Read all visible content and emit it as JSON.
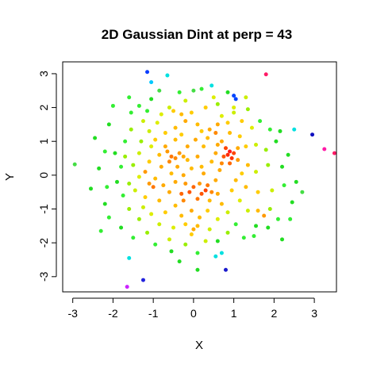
{
  "chart_data": {
    "type": "scatter",
    "title": "2D Gaussian Dint at perp = 43",
    "xlabel": "X",
    "ylabel": "Y",
    "xlim": [
      -3.25,
      3.55
    ],
    "ylim": [
      -3.45,
      3.35
    ],
    "x_ticks": [
      -3,
      -2,
      -1,
      0,
      1,
      2,
      3
    ],
    "y_ticks": [
      -3,
      -2,
      -1,
      0,
      1,
      2,
      3
    ],
    "grid": false,
    "legend": "none",
    "color_scale": "rainbow: red = high local density, through orange, yellow, green, cyan, to blue/magenta = low density",
    "points": [
      {
        "x": -1.15,
        "y": 3.05,
        "color": "#0a3dff"
      },
      {
        "x": -1.05,
        "y": 2.75,
        "color": "#00c8ff"
      },
      {
        "x": -0.65,
        "y": 2.95,
        "color": "#00e0e0"
      },
      {
        "x": 1.8,
        "y": 2.98,
        "color": "#ff1a66"
      },
      {
        "x": 0.85,
        "y": 2.45,
        "color": "#22dd22"
      },
      {
        "x": 1.0,
        "y": 2.35,
        "color": "#0044ff"
      },
      {
        "x": 1.05,
        "y": 2.25,
        "color": "#0044ff"
      },
      {
        "x": 0.45,
        "y": 2.65,
        "color": "#00e0e0"
      },
      {
        "x": -1.6,
        "y": 2.3,
        "color": "#33ee33"
      },
      {
        "x": -2.0,
        "y": 2.05,
        "color": "#33ee33"
      },
      {
        "x": 2.5,
        "y": 1.35,
        "color": "#00e0e0"
      },
      {
        "x": 2.95,
        "y": 1.2,
        "color": "#1010c0"
      },
      {
        "x": 3.25,
        "y": 0.77,
        "color": "#ff1aa6"
      },
      {
        "x": 3.5,
        "y": 0.65,
        "color": "#ff1a66"
      },
      {
        "x": -2.95,
        "y": 0.32,
        "color": "#44dd44"
      },
      {
        "x": -2.55,
        "y": -0.4,
        "color": "#22dd22"
      },
      {
        "x": -2.3,
        "y": -1.65,
        "color": "#33ee33"
      },
      {
        "x": -1.6,
        "y": -2.45,
        "color": "#00e0e0"
      },
      {
        "x": -1.65,
        "y": -3.3,
        "color": "#cc22ff"
      },
      {
        "x": -1.25,
        "y": -3.1,
        "color": "#2222dd"
      },
      {
        "x": 0.8,
        "y": -2.8,
        "color": "#1a1acc"
      },
      {
        "x": 0.7,
        "y": -2.3,
        "color": "#00e0e0"
      },
      {
        "x": 0.55,
        "y": -2.4,
        "color": "#00e0e0"
      },
      {
        "x": 0.1,
        "y": -2.8,
        "color": "#22dd22"
      },
      {
        "x": -0.35,
        "y": -2.55,
        "color": "#22dd22"
      },
      {
        "x": 2.45,
        "y": -0.8,
        "color": "#22dd22"
      },
      {
        "x": 2.2,
        "y": -1.9,
        "color": "#22dd22"
      },
      {
        "x": 2.7,
        "y": -0.5,
        "color": "#44dd44"
      },
      {
        "x": 0.9,
        "y": 0.7,
        "color": "#ff1a1a"
      },
      {
        "x": 0.85,
        "y": 0.6,
        "color": "#ff2a00"
      },
      {
        "x": 0.95,
        "y": 0.5,
        "color": "#ff3300"
      },
      {
        "x": 0.8,
        "y": 0.8,
        "color": "#ff4400"
      },
      {
        "x": 1.0,
        "y": 0.65,
        "color": "#ff4400"
      },
      {
        "x": 0.75,
        "y": 0.55,
        "color": "#ff5500"
      },
      {
        "x": 0.9,
        "y": 0.35,
        "color": "#ff6600"
      },
      {
        "x": 0.3,
        "y": -0.45,
        "color": "#ff4400"
      },
      {
        "x": 0.2,
        "y": -0.55,
        "color": "#ff5500"
      },
      {
        "x": -0.1,
        "y": -0.5,
        "color": "#ff5500"
      },
      {
        "x": 0.0,
        "y": -0.35,
        "color": "#ff6600"
      },
      {
        "x": 0.35,
        "y": -0.3,
        "color": "#ff7700"
      },
      {
        "x": -0.3,
        "y": -0.55,
        "color": "#ff6600"
      },
      {
        "x": 0.1,
        "y": -0.7,
        "color": "#ff7700"
      },
      {
        "x": -0.55,
        "y": 0.55,
        "color": "#ff7700"
      },
      {
        "x": -0.45,
        "y": 0.5,
        "color": "#ff8800"
      },
      {
        "x": -0.6,
        "y": 0.4,
        "color": "#ff8800"
      },
      {
        "x": -0.35,
        "y": 0.65,
        "color": "#ff9900"
      },
      {
        "x": 0.55,
        "y": 1.25,
        "color": "#ff8800"
      },
      {
        "x": 0.4,
        "y": 1.35,
        "color": "#ffaa00"
      },
      {
        "x": 0.6,
        "y": 1.5,
        "color": "#ffaa00"
      },
      {
        "x": -1.0,
        "y": -0.35,
        "color": "#ff7700"
      },
      {
        "x": -1.1,
        "y": -0.25,
        "color": "#ff9900"
      },
      {
        "x": -1.2,
        "y": 0.1,
        "color": "#ff9900"
      },
      {
        "x": 0.0,
        "y": -1.6,
        "color": "#ffaa00"
      },
      {
        "x": 0.1,
        "y": -1.5,
        "color": "#ffbb00"
      },
      {
        "x": -0.05,
        "y": -1.75,
        "color": "#ffcc00"
      },
      {
        "x": 1.75,
        "y": -1.2,
        "color": "#ff9900"
      },
      {
        "x": 1.6,
        "y": -1.05,
        "color": "#ffbb00"
      },
      {
        "x": -0.2,
        "y": 1.6,
        "color": "#ffaa00"
      },
      {
        "x": -0.3,
        "y": 1.8,
        "color": "#ffbb00"
      },
      {
        "x": 0.3,
        "y": 2.0,
        "color": "#ffcc00"
      },
      {
        "x": 0.5,
        "y": 2.3,
        "color": "#ddee00"
      },
      {
        "x": -0.2,
        "y": 2.2,
        "color": "#ccee00"
      },
      {
        "x": -0.6,
        "y": 2.0,
        "color": "#ccee00"
      },
      {
        "x": 0.0,
        "y": 2.5,
        "color": "#44dd44"
      },
      {
        "x": 0.2,
        "y": 2.55,
        "color": "#33ee33"
      },
      {
        "x": -0.85,
        "y": 2.5,
        "color": "#44dd44"
      },
      {
        "x": -1.35,
        "y": 2.05,
        "color": "#33ee33"
      },
      {
        "x": 1.3,
        "y": 2.3,
        "color": "#ccee00"
      },
      {
        "x": 1.0,
        "y": 2.0,
        "color": "#ddee00"
      },
      {
        "x": 1.2,
        "y": 1.6,
        "color": "#ffcc00"
      },
      {
        "x": 1.45,
        "y": 1.4,
        "color": "#ddee00"
      },
      {
        "x": 1.65,
        "y": 1.6,
        "color": "#33ee33"
      },
      {
        "x": 1.9,
        "y": 1.35,
        "color": "#33ee33"
      },
      {
        "x": 2.05,
        "y": 1.0,
        "color": "#22dd22"
      },
      {
        "x": 1.8,
        "y": 0.75,
        "color": "#99ee00"
      },
      {
        "x": 1.55,
        "y": 0.9,
        "color": "#ccee00"
      },
      {
        "x": 1.3,
        "y": 0.85,
        "color": "#ffcc00"
      },
      {
        "x": 1.35,
        "y": 0.3,
        "color": "#ffbb00"
      },
      {
        "x": 1.55,
        "y": 0.1,
        "color": "#ccee00"
      },
      {
        "x": 1.85,
        "y": 0.3,
        "color": "#99ee00"
      },
      {
        "x": 2.2,
        "y": 0.25,
        "color": "#22dd22"
      },
      {
        "x": 2.25,
        "y": -0.3,
        "color": "#33ee33"
      },
      {
        "x": 1.95,
        "y": -0.45,
        "color": "#ccee00"
      },
      {
        "x": 1.6,
        "y": -0.5,
        "color": "#ffcc00"
      },
      {
        "x": 1.3,
        "y": -0.35,
        "color": "#ffbb00"
      },
      {
        "x": 1.05,
        "y": -0.15,
        "color": "#ffbb00"
      },
      {
        "x": 1.15,
        "y": -0.75,
        "color": "#ddee00"
      },
      {
        "x": 1.35,
        "y": -1.05,
        "color": "#ccee00"
      },
      {
        "x": 1.9,
        "y": -1.0,
        "color": "#99ee00"
      },
      {
        "x": 2.1,
        "y": -1.3,
        "color": "#33ee33"
      },
      {
        "x": 1.55,
        "y": -1.5,
        "color": "#22dd22"
      },
      {
        "x": 1.05,
        "y": -1.45,
        "color": "#33ee33"
      },
      {
        "x": 1.25,
        "y": -1.85,
        "color": "#33ee33"
      },
      {
        "x": 0.6,
        "y": -1.95,
        "color": "#22dd22"
      },
      {
        "x": 0.4,
        "y": -1.6,
        "color": "#ccee00"
      },
      {
        "x": 0.6,
        "y": -1.3,
        "color": "#ddee00"
      },
      {
        "x": 0.35,
        "y": -1.05,
        "color": "#ffcc00"
      },
      {
        "x": 0.7,
        "y": -0.85,
        "color": "#ffbb00"
      },
      {
        "x": 0.6,
        "y": -0.55,
        "color": "#ffaa00"
      },
      {
        "x": 0.55,
        "y": -0.15,
        "color": "#ffaa00"
      },
      {
        "x": 0.65,
        "y": 0.15,
        "color": "#ffaa00"
      },
      {
        "x": 0.45,
        "y": 0.4,
        "color": "#ffbb00"
      },
      {
        "x": 0.2,
        "y": 0.25,
        "color": "#ffbb00"
      },
      {
        "x": 0.1,
        "y": 0.55,
        "color": "#ffaa00"
      },
      {
        "x": 0.25,
        "y": 0.85,
        "color": "#ffbb00"
      },
      {
        "x": 0.05,
        "y": 1.05,
        "color": "#ffaa00"
      },
      {
        "x": 0.35,
        "y": 1.1,
        "color": "#ffbb00"
      },
      {
        "x": 0.7,
        "y": 1.0,
        "color": "#ffaa00"
      },
      {
        "x": 0.9,
        "y": 1.25,
        "color": "#ffbb00"
      },
      {
        "x": -0.15,
        "y": 0.85,
        "color": "#ffaa00"
      },
      {
        "x": -0.05,
        "y": 0.2,
        "color": "#ffbb00"
      },
      {
        "x": -0.25,
        "y": 0.0,
        "color": "#ffaa00"
      },
      {
        "x": -0.2,
        "y": -0.25,
        "color": "#ff9900"
      },
      {
        "x": -0.45,
        "y": -0.2,
        "color": "#ffaa00"
      },
      {
        "x": -0.55,
        "y": 0.05,
        "color": "#ffbb00"
      },
      {
        "x": -0.8,
        "y": 0.25,
        "color": "#ffaa00"
      },
      {
        "x": -0.85,
        "y": 0.6,
        "color": "#ffbb00"
      },
      {
        "x": -0.7,
        "y": 0.85,
        "color": "#ffaa00"
      },
      {
        "x": -0.45,
        "y": 1.05,
        "color": "#ffbb00"
      },
      {
        "x": -0.7,
        "y": 1.25,
        "color": "#ffcc00"
      },
      {
        "x": -0.45,
        "y": 1.4,
        "color": "#ffbb00"
      },
      {
        "x": -0.9,
        "y": 1.55,
        "color": "#ddee00"
      },
      {
        "x": -1.1,
        "y": 1.3,
        "color": "#ccee00"
      },
      {
        "x": -1.3,
        "y": 1.0,
        "color": "#99ee00"
      },
      {
        "x": -1.05,
        "y": 0.85,
        "color": "#ddee00"
      },
      {
        "x": -1.35,
        "y": 0.65,
        "color": "#ccee00"
      },
      {
        "x": -1.5,
        "y": 0.3,
        "color": "#99ee00"
      },
      {
        "x": -1.35,
        "y": -0.05,
        "color": "#ddee00"
      },
      {
        "x": -1.45,
        "y": -0.45,
        "color": "#ccee00"
      },
      {
        "x": -1.2,
        "y": -0.65,
        "color": "#ffcc00"
      },
      {
        "x": -0.85,
        "y": -0.75,
        "color": "#ffbb00"
      },
      {
        "x": -0.6,
        "y": -0.5,
        "color": "#ffaa00"
      },
      {
        "x": -0.45,
        "y": -0.9,
        "color": "#ffbb00"
      },
      {
        "x": -0.7,
        "y": -1.1,
        "color": "#ffcc00"
      },
      {
        "x": -0.3,
        "y": -1.2,
        "color": "#ffbb00"
      },
      {
        "x": -0.05,
        "y": -1.05,
        "color": "#ffaa00"
      },
      {
        "x": 0.15,
        "y": -1.25,
        "color": "#ffbb00"
      },
      {
        "x": -0.2,
        "y": -1.45,
        "color": "#ffcc00"
      },
      {
        "x": -0.5,
        "y": -1.55,
        "color": "#ddee00"
      },
      {
        "x": -0.85,
        "y": -1.45,
        "color": "#ccee00"
      },
      {
        "x": -1.05,
        "y": -1.15,
        "color": "#ddee00"
      },
      {
        "x": -1.35,
        "y": -1.3,
        "color": "#99ee00"
      },
      {
        "x": -1.6,
        "y": -1.0,
        "color": "#99ee00"
      },
      {
        "x": -1.75,
        "y": -0.6,
        "color": "#33ee33"
      },
      {
        "x": -1.9,
        "y": -0.2,
        "color": "#22dd22"
      },
      {
        "x": -1.8,
        "y": 0.25,
        "color": "#33ee33"
      },
      {
        "x": -1.95,
        "y": 0.65,
        "color": "#22dd22"
      },
      {
        "x": -1.7,
        "y": 1.0,
        "color": "#33ee33"
      },
      {
        "x": -1.55,
        "y": 1.35,
        "color": "#99ee00"
      },
      {
        "x": -1.25,
        "y": 1.6,
        "color": "#ccee00"
      },
      {
        "x": -1.15,
        "y": 1.9,
        "color": "#33ee33"
      },
      {
        "x": -0.8,
        "y": 1.8,
        "color": "#ddee00"
      },
      {
        "x": -0.5,
        "y": 1.9,
        "color": "#ffcc00"
      },
      {
        "x": -0.05,
        "y": 1.85,
        "color": "#ffcc00"
      },
      {
        "x": 0.1,
        "y": 1.5,
        "color": "#ffbb00"
      },
      {
        "x": 0.7,
        "y": 1.75,
        "color": "#ddee00"
      },
      {
        "x": 0.85,
        "y": 1.55,
        "color": "#ffcc00"
      },
      {
        "x": -2.1,
        "y": 1.5,
        "color": "#22dd22"
      },
      {
        "x": -2.45,
        "y": 1.1,
        "color": "#22dd22"
      },
      {
        "x": -2.2,
        "y": 0.7,
        "color": "#33ee33"
      },
      {
        "x": -2.35,
        "y": 0.2,
        "color": "#22dd22"
      },
      {
        "x": -2.15,
        "y": -0.35,
        "color": "#33ee33"
      },
      {
        "x": -2.2,
        "y": -0.85,
        "color": "#22dd22"
      },
      {
        "x": -2.1,
        "y": -1.25,
        "color": "#33ee33"
      },
      {
        "x": -1.8,
        "y": -1.55,
        "color": "#22dd22"
      },
      {
        "x": -1.5,
        "y": -1.85,
        "color": "#33ee33"
      },
      {
        "x": -1.15,
        "y": -1.7,
        "color": "#99ee00"
      },
      {
        "x": -0.95,
        "y": -2.05,
        "color": "#33ee33"
      },
      {
        "x": -0.6,
        "y": -1.9,
        "color": "#ccee00"
      },
      {
        "x": -0.55,
        "y": -2.25,
        "color": "#22dd22"
      },
      {
        "x": -0.2,
        "y": -2.05,
        "color": "#99ee00"
      },
      {
        "x": 0.1,
        "y": -2.3,
        "color": "#33ee33"
      },
      {
        "x": 0.3,
        "y": -1.95,
        "color": "#ccee00"
      },
      {
        "x": 0.85,
        "y": -1.7,
        "color": "#99ee00"
      },
      {
        "x": 1.5,
        "y": -1.8,
        "color": "#33ee33"
      },
      {
        "x": 1.85,
        "y": -1.55,
        "color": "#22dd22"
      },
      {
        "x": 2.4,
        "y": -1.3,
        "color": "#33ee33"
      },
      {
        "x": 2.55,
        "y": -0.2,
        "color": "#22dd22"
      },
      {
        "x": 2.35,
        "y": 0.6,
        "color": "#22dd22"
      },
      {
        "x": 2.15,
        "y": 1.3,
        "color": "#22dd22"
      },
      {
        "x": 1.35,
        "y": 1.95,
        "color": "#99ee00"
      },
      {
        "x": 1.0,
        "y": 1.85,
        "color": "#ccee00"
      },
      {
        "x": 0.6,
        "y": 2.1,
        "color": "#99ee00"
      },
      {
        "x": -0.35,
        "y": 2.45,
        "color": "#33ee33"
      },
      {
        "x": -1.05,
        "y": 2.25,
        "color": "#22dd22"
      },
      {
        "x": -1.55,
        "y": 1.85,
        "color": "#33ee33"
      },
      {
        "x": 0.25,
        "y": 0.05,
        "color": "#ffaa00"
      },
      {
        "x": 0.4,
        "y": -0.75,
        "color": "#ffbb00"
      },
      {
        "x": -0.15,
        "y": 0.45,
        "color": "#ffbb00"
      },
      {
        "x": -0.3,
        "y": 1.2,
        "color": "#ffcc00"
      },
      {
        "x": 0.2,
        "y": 1.3,
        "color": "#ffcc00"
      },
      {
        "x": 1.15,
        "y": 1.15,
        "color": "#ffcc00"
      },
      {
        "x": 1.2,
        "y": 0.05,
        "color": "#ffcc00"
      },
      {
        "x": 0.95,
        "y": -0.45,
        "color": "#ffcc00"
      },
      {
        "x": 0.85,
        "y": -1.1,
        "color": "#ccee00"
      },
      {
        "x": -0.95,
        "y": -0.1,
        "color": "#ffbb00"
      },
      {
        "x": -0.75,
        "y": -0.3,
        "color": "#ffaa00"
      },
      {
        "x": -1.1,
        "y": 0.4,
        "color": "#ffcc00"
      },
      {
        "x": -0.95,
        "y": 1.05,
        "color": "#ffcc00"
      },
      {
        "x": -1.7,
        "y": 0.55,
        "color": "#99ee00"
      },
      {
        "x": -1.6,
        "y": -0.25,
        "color": "#99ee00"
      },
      {
        "x": -1.25,
        "y": -0.95,
        "color": "#ccee00"
      },
      {
        "x": 0.55,
        "y": 0.65,
        "color": "#ffaa00"
      },
      {
        "x": 0.7,
        "y": 0.35,
        "color": "#ff8800"
      },
      {
        "x": 1.1,
        "y": 0.45,
        "color": "#ff9900"
      },
      {
        "x": 1.1,
        "y": 0.8,
        "color": "#ffaa00"
      },
      {
        "x": 0.6,
        "y": 0.9,
        "color": "#ffaa00"
      },
      {
        "x": -0.25,
        "y": -0.75,
        "color": "#ff8800"
      },
      {
        "x": 0.45,
        "y": -0.5,
        "color": "#ff8800"
      },
      {
        "x": 0.15,
        "y": -0.25,
        "color": "#ff9900"
      },
      {
        "x": -0.4,
        "y": 0.25,
        "color": "#ffaa00"
      },
      {
        "x": -0.65,
        "y": 0.7,
        "color": "#ff9900"
      },
      {
        "x": -0.25,
        "y": 0.55,
        "color": "#ffaa00"
      }
    ]
  }
}
